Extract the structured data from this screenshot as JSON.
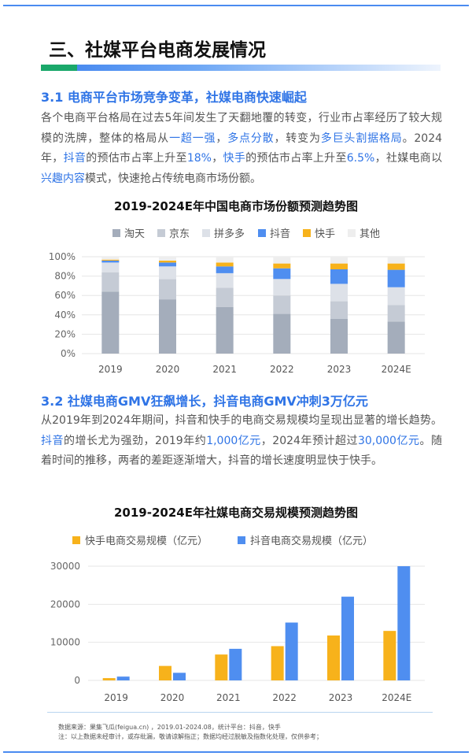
{
  "heading": "三、社媒平台电商发展情况",
  "section1": {
    "title": "3.1 电商平台市场竞争变革，社媒电商快速崛起",
    "paragraph": [
      {
        "t": "各个电商平台格局在过去5年间发生了天翻地覆的转变，行业市占率经历了较大规模的洗牌，整体的格局从",
        "h": false
      },
      {
        "t": "一超一强",
        "h": true
      },
      {
        "t": "，",
        "h": false
      },
      {
        "t": "多点分散",
        "h": true
      },
      {
        "t": "，转变为",
        "h": false
      },
      {
        "t": "多巨头割据格局",
        "h": true
      },
      {
        "t": "。2024年，",
        "h": false
      },
      {
        "t": "抖音",
        "h": true
      },
      {
        "t": "的预估市占率上升至",
        "h": false
      },
      {
        "t": "18%",
        "h": true
      },
      {
        "t": "，",
        "h": false
      },
      {
        "t": "快手",
        "h": true
      },
      {
        "t": "的预估市占率上升至",
        "h": false
      },
      {
        "t": "6.5%",
        "h": true
      },
      {
        "t": "，社媒电商以",
        "h": false
      },
      {
        "t": "兴趣内容",
        "h": true
      },
      {
        "t": "模式，快速抢占传统电商市场份额。",
        "h": false
      }
    ]
  },
  "section2": {
    "title": "3.2 社媒电商GMV狂飙增长，抖音电商GMV冲刺3万亿元",
    "paragraph": [
      {
        "t": "从2019年到2024年期间，抖音和快手的电商交易规模均呈现出显著的增长趋势。",
        "h": false
      },
      {
        "t": "抖音",
        "h": true
      },
      {
        "t": "的增长尤为强劲，2019年约",
        "h": false
      },
      {
        "t": "1,000亿元",
        "h": true
      },
      {
        "t": "，2024年预计超过",
        "h": false
      },
      {
        "t": "30,000亿元",
        "h": true
      },
      {
        "t": "。随着时间的推移，两者的差距逐渐增大，抖音的增长速度明显快于快手。",
        "h": false
      }
    ]
  },
  "chart_data": [
    {
      "type": "bar",
      "stacked": true,
      "title": "2019-2024E年中国电商市场份额预测趋势图",
      "categories": [
        "2019",
        "2020",
        "2021",
        "2022",
        "2023",
        "2024E"
      ],
      "series": [
        {
          "name": "淘天",
          "color": "#a4adbb",
          "values": [
            64,
            56,
            48,
            41,
            36,
            33
          ]
        },
        {
          "name": "京东",
          "color": "#c5cbd5",
          "values": [
            20,
            21,
            20,
            19,
            18,
            17
          ]
        },
        {
          "name": "拼多多",
          "color": "#dde1e8",
          "values": [
            10,
            13,
            15,
            17,
            18,
            18.5
          ]
        },
        {
          "name": "抖音",
          "color": "#4f8ef0",
          "values": [
            2,
            4,
            7,
            11,
            15,
            18
          ]
        },
        {
          "name": "快手",
          "color": "#f7b21b",
          "values": [
            1,
            2,
            4,
            5,
            6,
            6.5
          ]
        },
        {
          "name": "其他",
          "color": "#eeeeee",
          "values": [
            3,
            4,
            6,
            7,
            7,
            7
          ]
        }
      ],
      "yticks": [
        "0%",
        "20%",
        "40%",
        "60%",
        "80%",
        "100%"
      ],
      "ylim": [
        0,
        100
      ],
      "legend_position": "top"
    },
    {
      "type": "bar",
      "title": "2019-2024E年社媒电商交易规模预测趋势图",
      "categories": [
        "2019",
        "2020",
        "2021",
        "2022",
        "2023",
        "2024E"
      ],
      "series": [
        {
          "name": "快手电商交易规模（亿元）",
          "color": "#f7b21b",
          "values": [
            600,
            3800,
            6800,
            9000,
            11800,
            13000
          ]
        },
        {
          "name": "抖音电商交易规模（亿元）",
          "color": "#4f8ef0",
          "values": [
            1000,
            2000,
            8300,
            15200,
            22000,
            30000
          ]
        }
      ],
      "yticks": [
        "0",
        "10000",
        "20000",
        "30000"
      ],
      "ylim": [
        0,
        30000
      ],
      "legend_position": "top"
    }
  ],
  "footer": {
    "source": "数据来源：果集飞瓜(feigua.cn) ，2019.01-2024.08，统计平台：抖音，快手",
    "note": "注：以上数据未经审计，或存纰漏，敬请谅解指正；数据均经过脱敏及指数化处理，仅供参考；"
  }
}
